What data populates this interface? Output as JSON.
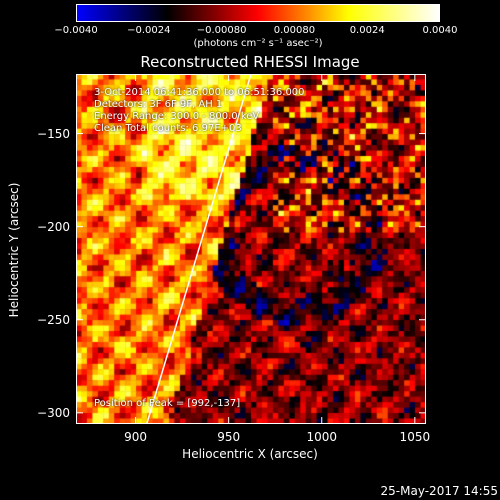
{
  "colorbar": {
    "tick_labels": [
      "−0.0040",
      "−0.0024",
      "−0.00080",
      "0.00080",
      "0.0024",
      "0.0040"
    ],
    "tick_values": [
      -0.004,
      -0.0024,
      -0.0008,
      0.0008,
      0.0024,
      0.004
    ],
    "range": [
      -0.004,
      0.004
    ],
    "unit": "(photons cm⁻² s⁻¹ asec⁻²)"
  },
  "annotations": {
    "time_range": "3-Oct-2014 06:41:36.000 to 06:51:36.000",
    "detectors": "Detectors: 3F 6F 9F, AH 1",
    "energy_range": "Energy Range: 300.0 - 800.0 keV",
    "clean": "Clean     Total counts: 6.97E+03",
    "peak": "Position of Peak = [992,-137]"
  },
  "footer": {
    "date": "25-May-2017 14:55"
  },
  "chart_data": {
    "type": "heatmap",
    "title": "Reconstructed RHESSI Image",
    "xlabel": "Heliocentric X (arcsec)",
    "ylabel": "Heliocentric Y (arcsec)",
    "xlim": [
      868,
      1056
    ],
    "ylim": [
      -306,
      -118
    ],
    "xticks": [
      900,
      950,
      1000,
      1050
    ],
    "yticks": [
      -150,
      -200,
      -250,
      -300
    ],
    "colorscale": [
      "#0000ff",
      "#000000",
      "#ff0000",
      "#ffff00",
      "#ffffff"
    ],
    "limb_line": {
      "x": [
        906,
        962
      ],
      "y": [
        -306,
        -118
      ]
    },
    "peak": {
      "x": 992,
      "y": -137
    }
  }
}
